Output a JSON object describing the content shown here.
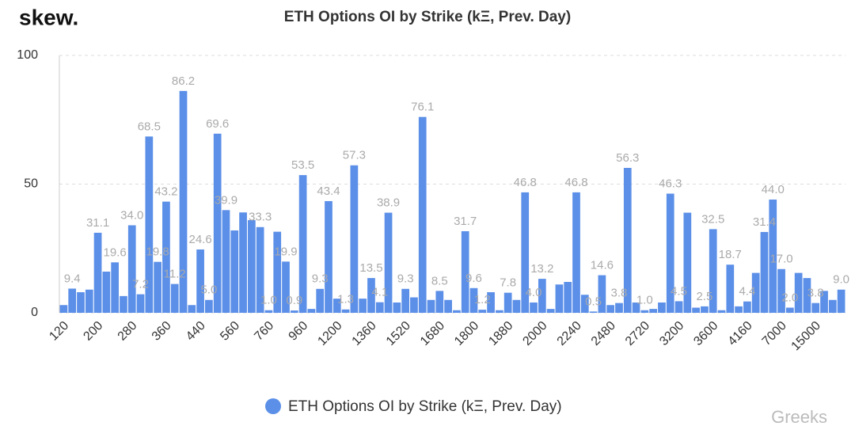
{
  "brand": "skew.",
  "watermark": "Greeks",
  "chart_data": {
    "type": "bar",
    "title": "ETH Options OI by Strike (kΞ, Prev. Day)",
    "categories": [
      "120",
      null,
      null,
      null,
      "200",
      null,
      null,
      null,
      "280",
      null,
      null,
      null,
      "360",
      null,
      null,
      null,
      "440",
      null,
      null,
      null,
      "560",
      null,
      null,
      null,
      "760",
      null,
      null,
      null,
      "960",
      null,
      null,
      null,
      "1200",
      null,
      null,
      null,
      "1360",
      null,
      null,
      null,
      "1520",
      null,
      null,
      null,
      "1680",
      null,
      null,
      null,
      "1800",
      null,
      null,
      null,
      "1880",
      null,
      null,
      null,
      "2000",
      null,
      null,
      null,
      "2240",
      null,
      null,
      null,
      "2480",
      null,
      null,
      null,
      "2720",
      null,
      null,
      null,
      "3200",
      null,
      null,
      null,
      "3600",
      null,
      null,
      null,
      "4160",
      null,
      null,
      null,
      "7000",
      null,
      null,
      null,
      "15000",
      null,
      null,
      null
    ],
    "series": [
      {
        "name": "ETH Options OI by Strike (kΞ, Prev. Day)",
        "color": "#5b8fe8",
        "values": [
          3,
          9.4,
          8,
          9,
          31.1,
          16,
          19.6,
          6.5,
          34.0,
          7.2,
          68.5,
          19.8,
          43.2,
          11.2,
          86.2,
          3,
          24.6,
          5.0,
          69.6,
          39.9,
          32,
          39,
          36,
          33.3,
          1.0,
          31.5,
          19.9,
          0.9,
          53.5,
          1.5,
          9.3,
          43.4,
          5.5,
          1.3,
          57.3,
          5.5,
          13.5,
          4.1,
          38.9,
          4,
          9.3,
          6,
          76.1,
          5,
          8.5,
          5,
          1,
          31.7,
          9.6,
          1.2,
          8,
          1,
          7.8,
          5,
          46.8,
          4.0,
          13.2,
          1.5,
          11,
          12,
          46.8,
          7,
          0.5,
          14.6,
          3,
          3.8,
          56.3,
          4,
          1.0,
          1.5,
          4,
          46.3,
          4.5,
          38.9,
          2,
          2.5,
          32.5,
          1,
          18.7,
          2.5,
          4.4,
          15.5,
          31.4,
          44.0,
          17.0,
          2.0,
          15.5,
          13.5,
          3.8,
          8.5,
          5,
          9.0
        ],
        "value_labels": [
          null,
          "9.4",
          null,
          null,
          "31.1",
          null,
          "19.6",
          null,
          "34.0",
          "7.2",
          "68.5",
          "19.8",
          "43.2",
          "11.2",
          "86.2",
          null,
          "24.6",
          "5.0",
          "69.6",
          "39.9",
          null,
          null,
          null,
          "33.3",
          "1.0",
          null,
          "19.9",
          "0.9",
          "53.5",
          null,
          "9.3",
          "43.4",
          null,
          "1.3",
          "57.3",
          null,
          "13.5",
          "4.1",
          "38.9",
          null,
          "9.3",
          null,
          "76.1",
          null,
          "8.5",
          null,
          null,
          "31.7",
          "9.6",
          "1.2",
          null,
          null,
          "7.8",
          null,
          "46.8",
          "4.0",
          "13.2",
          null,
          null,
          null,
          "46.8",
          null,
          "0.5",
          "14.6",
          null,
          "3.8",
          "56.3",
          null,
          "1.0",
          null,
          null,
          "46.3",
          "4.5",
          null,
          null,
          "2.5",
          "32.5",
          null,
          "18.7",
          null,
          "4.4",
          null,
          "31.4",
          "44.0",
          "17.0",
          "2.0",
          null,
          null,
          "3.8",
          null,
          null,
          "9.0"
        ]
      }
    ],
    "ylim": [
      0,
      100
    ],
    "yticks": [
      0,
      50,
      100
    ],
    "grid": true,
    "legend": "bottom"
  }
}
